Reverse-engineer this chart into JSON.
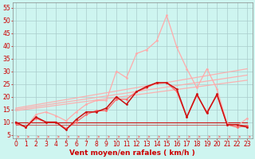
{
  "background_color": "#cef5f0",
  "grid_color": "#aacccc",
  "xlabel": "Vent moyen/en rafales ( km/h )",
  "ylabel_ticks": [
    5,
    10,
    15,
    20,
    25,
    30,
    35,
    40,
    45,
    50,
    55
  ],
  "x_ticks": [
    0,
    1,
    2,
    3,
    4,
    5,
    6,
    7,
    8,
    9,
    10,
    11,
    12,
    13,
    14,
    15,
    16,
    17,
    18,
    19,
    20,
    21,
    22,
    23
  ],
  "x_range": [
    -0.3,
    23.5
  ],
  "y_range": [
    3.5,
    57
  ],
  "trend1_color": "#ffaaaa",
  "trend1_x": [
    0,
    23
  ],
  "trend1_y": [
    15.5,
    31.0
  ],
  "trend2_color": "#ffaaaa",
  "trend2_x": [
    0,
    23
  ],
  "trend2_y": [
    15.0,
    28.5
  ],
  "trend3_color": "#ffaaaa",
  "trend3_x": [
    0,
    23
  ],
  "trend3_y": [
    14.5,
    26.5
  ],
  "line_peak_color": "#ffaaaa",
  "line_peak_x": [
    0,
    1,
    2,
    3,
    4,
    5,
    6,
    7,
    8,
    9,
    10,
    11,
    12,
    13,
    14,
    15,
    16,
    17,
    18,
    19,
    20,
    21,
    22,
    23
  ],
  "line_peak_y": [
    9.5,
    8.0,
    13.0,
    14.0,
    12.5,
    10.5,
    14.0,
    17.0,
    18.5,
    18.5,
    30.0,
    27.5,
    37.0,
    38.5,
    42.0,
    52.0,
    39.5,
    31.0,
    23.5,
    31.0,
    23.0,
    9.5,
    8.5,
    11.5
  ],
  "line_mid_color": "#ff6666",
  "line_mid_x": [
    0,
    1,
    2,
    3,
    4,
    5,
    6,
    7,
    8,
    9,
    10,
    11,
    12,
    13,
    14,
    15,
    16,
    17,
    18,
    19,
    20,
    21,
    22,
    23
  ],
  "line_mid_y": [
    9.5,
    8.0,
    11.5,
    10.0,
    10.0,
    7.5,
    10.0,
    13.0,
    14.5,
    14.5,
    19.0,
    19.0,
    22.0,
    23.5,
    25.5,
    25.5,
    22.0,
    12.0,
    20.5,
    14.0,
    20.5,
    9.0,
    8.0,
    8.5
  ],
  "line_dark1_color": "#cc1111",
  "line_dark1_x": [
    0,
    1,
    2,
    3,
    4,
    5,
    6,
    7,
    8,
    9,
    10,
    11,
    12,
    13,
    14,
    15,
    16,
    17,
    18,
    19,
    20,
    21,
    22,
    23
  ],
  "line_dark1_y": [
    10.0,
    8.0,
    12.0,
    10.0,
    10.0,
    7.0,
    11.0,
    14.0,
    14.0,
    15.5,
    20.0,
    17.0,
    22.0,
    24.0,
    25.5,
    25.5,
    23.0,
    12.0,
    21.0,
    13.5,
    21.0,
    9.0,
    9.0,
    8.0
  ],
  "line_flat_color": "#cc1111",
  "line_flat_x": [
    0,
    1,
    2,
    3,
    4,
    5,
    6,
    7,
    8,
    9,
    10,
    11,
    12,
    13,
    14,
    15,
    16,
    17,
    18,
    19,
    20,
    21,
    22,
    23
  ],
  "line_flat_y": [
    10.0,
    10.0,
    10.0,
    10.0,
    10.0,
    10.0,
    10.0,
    10.0,
    10.0,
    10.0,
    10.0,
    10.0,
    10.0,
    10.0,
    10.0,
    10.0,
    10.0,
    10.0,
    10.0,
    10.0,
    10.0,
    10.0,
    10.0,
    10.0
  ],
  "line_low1_color": "#cc1111",
  "line_low1_x": [
    0,
    1,
    2,
    3,
    4,
    5,
    6,
    7,
    8,
    9,
    10,
    11,
    12,
    13,
    14,
    15,
    16,
    17,
    18,
    19,
    20,
    21,
    22,
    23
  ],
  "line_low1_y": [
    9.0,
    9.0,
    9.0,
    9.0,
    9.0,
    9.0,
    9.0,
    9.0,
    9.0,
    9.0,
    9.0,
    9.0,
    9.0,
    9.0,
    9.0,
    9.0,
    9.0,
    9.0,
    9.0,
    9.0,
    9.0,
    9.0,
    9.0,
    9.0
  ],
  "arrows_color": "#ff6666",
  "tick_fontsize": 5.5,
  "label_fontsize": 6.5
}
